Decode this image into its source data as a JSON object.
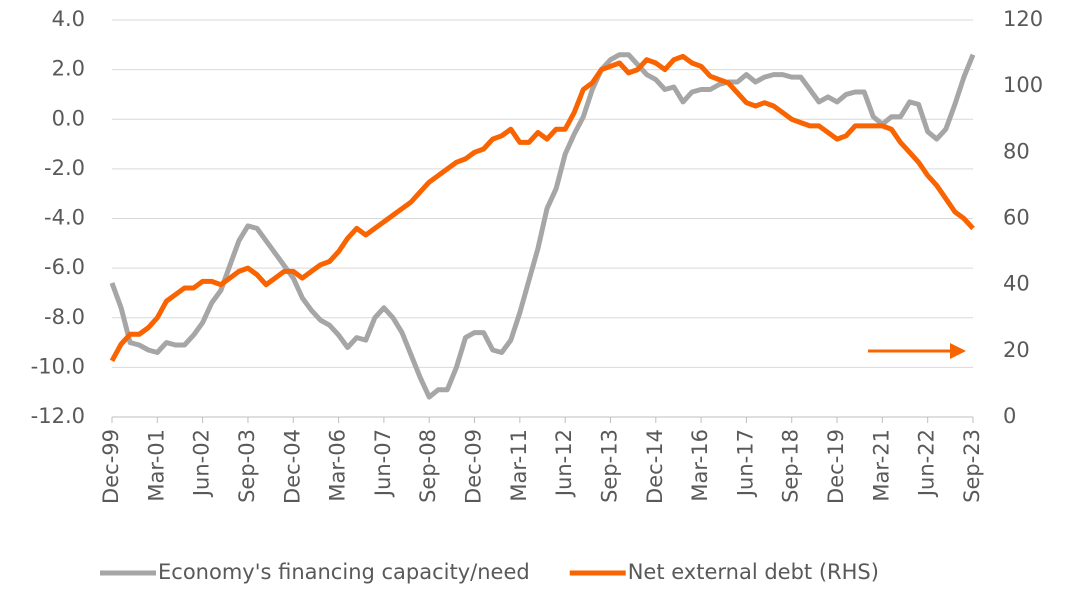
{
  "chart_data": {
    "type": "line",
    "categories": [
      "Dec-99",
      null,
      null,
      null,
      null,
      "Mar-01",
      null,
      null,
      null,
      null,
      "Jun-02",
      null,
      null,
      null,
      null,
      "Sep-03",
      null,
      null,
      null,
      null,
      "Dec-04",
      null,
      null,
      null,
      null,
      "Mar-06",
      null,
      null,
      null,
      null,
      "Jun-07",
      null,
      null,
      null,
      null,
      "Sep-08",
      null,
      null,
      null,
      null,
      "Dec-09",
      null,
      null,
      null,
      null,
      "Mar-11",
      null,
      null,
      null,
      null,
      "Jun-12",
      null,
      null,
      null,
      null,
      "Sep-13",
      null,
      null,
      null,
      null,
      "Dec-14",
      null,
      null,
      null,
      null,
      "Mar-16",
      null,
      null,
      null,
      null,
      "Jun-17",
      null,
      null,
      null,
      null,
      "Sep-18",
      null,
      null,
      null,
      null,
      "Dec-19",
      null,
      null,
      null,
      null,
      "Mar-21",
      null,
      null,
      null,
      null,
      "Jun-22",
      null,
      null,
      null,
      null,
      "Sep-23"
    ],
    "series": [
      {
        "name": "Economy's financing capacity/need",
        "color": "#a6a6a6",
        "values": [
          -6.6,
          -7.6,
          -9.0,
          -9.1,
          -9.3,
          -9.4,
          -9.0,
          -9.1,
          -9.1,
          -8.7,
          -8.2,
          -7.4,
          -6.9,
          -5.9,
          -4.9,
          -4.3,
          -4.4,
          -4.9,
          -5.4,
          -5.9,
          -6.4,
          -7.2,
          -7.7,
          -8.1,
          -8.3,
          -8.7,
          -9.2,
          -8.8,
          -8.9,
          -8.0,
          -7.6,
          -8.0,
          -8.6,
          -9.5,
          -10.4,
          -11.2,
          -10.9,
          -10.9,
          -10.0,
          -8.8,
          -8.6,
          -8.6,
          -9.3,
          -9.4,
          -8.9,
          -7.8,
          -6.5,
          -5.2,
          -3.6,
          -2.8,
          -1.4,
          -0.6,
          0.1,
          1.2,
          2.0,
          2.4,
          2.6,
          2.6,
          2.2,
          1.8,
          1.6,
          1.2,
          1.3,
          0.7,
          1.1,
          1.2,
          1.2,
          1.4,
          1.5,
          1.5,
          1.8,
          1.5,
          1.7,
          1.8,
          1.8,
          1.7,
          1.7,
          1.2,
          0.7,
          0.9,
          0.7,
          1.0,
          1.1,
          1.1,
          0.1,
          -0.2,
          0.1,
          0.1,
          0.7,
          0.6,
          -0.5,
          -0.8,
          -0.4,
          0.6,
          1.7,
          2.6
        ]
      },
      {
        "name": "Net external debt (RHS)",
        "color": "#fa6400",
        "axis": "y2",
        "values": [
          17,
          22,
          25,
          25,
          27,
          30,
          35,
          37,
          39,
          39,
          41,
          41,
          40,
          42,
          44,
          45,
          43,
          40,
          42,
          44,
          44,
          42,
          44,
          46,
          47,
          50,
          54,
          57,
          55,
          57,
          59,
          61,
          63,
          65,
          68,
          71,
          73,
          75,
          77,
          78,
          80,
          81,
          84,
          85,
          87,
          83,
          83,
          86,
          84,
          87,
          87,
          92,
          99,
          101,
          105,
          106,
          107,
          104,
          105,
          108,
          107,
          105,
          108,
          109,
          107,
          106,
          103,
          102,
          101,
          98,
          95,
          94,
          95,
          94,
          92,
          90,
          89,
          88,
          88,
          86,
          84,
          85,
          88,
          88,
          88,
          88,
          87,
          83,
          80,
          77,
          73,
          70,
          66,
          62,
          60,
          57
        ]
      }
    ],
    "ylim": [
      -12,
      4
    ],
    "yticks": [
      {
        "value": -12,
        "label": "-12.0"
      },
      {
        "value": -10,
        "label": "-10.0"
      },
      {
        "value": -8,
        "label": "-8.0"
      },
      {
        "value": -6,
        "label": "-6.0"
      },
      {
        "value": -4,
        "label": "-4.0"
      },
      {
        "value": -2,
        "label": "-2.0"
      },
      {
        "value": 0,
        "label": "0.0"
      },
      {
        "value": 2,
        "label": "2.0"
      },
      {
        "value": 4,
        "label": "4.0"
      }
    ],
    "y2lim": [
      0,
      120
    ],
    "y2ticks": [
      0,
      20,
      40,
      60,
      80,
      100,
      120
    ],
    "grid": true,
    "legend": "bottom"
  }
}
